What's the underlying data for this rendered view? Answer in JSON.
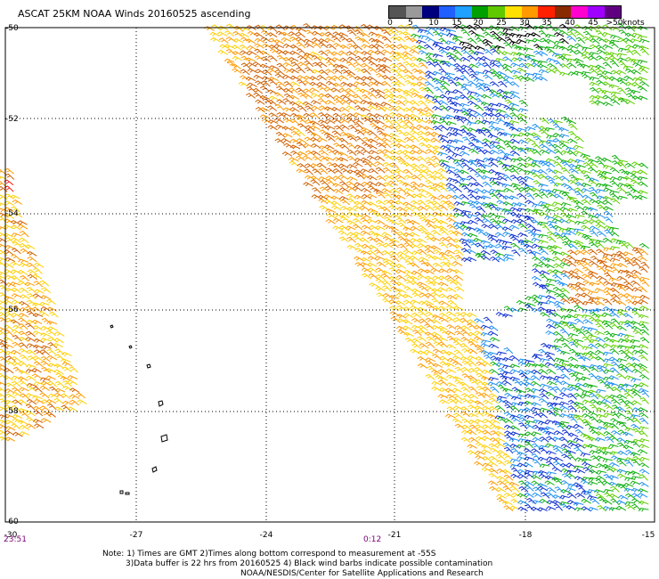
{
  "title": "ASCAT 25KM NOAA Winds 20160525 ascending",
  "legend": {
    "ticks": [
      "0",
      "5",
      "10",
      "15",
      "20",
      "25",
      "30",
      "35",
      "40",
      "45",
      ">50"
    ],
    "unit": "knots",
    "colors": [
      "#555555",
      "#9a9a9a",
      "#00007f",
      "#2060ff",
      "#20a0ff",
      "#00a000",
      "#60c800",
      "#ffe000",
      "#ff9a00",
      "#ff2000",
      "#8a2a00",
      "#ff00d0",
      "#a000ff",
      "#600080"
    ]
  },
  "axes": {
    "lat_labels": [
      "-50",
      "-52",
      "-54",
      "-56",
      "-58",
      "-60"
    ],
    "lon_labels": [
      "-30",
      "-27",
      "-24",
      "-21",
      "-18",
      "-15"
    ]
  },
  "times": {
    "left": "23:51",
    "center": "0:12"
  },
  "notes": [
    "Note: 1) Times are GMT 2)Times along bottom correspond to measurement at -55S",
    "3)Data buffer is 22 hrs from 20160525 4) Black wind barbs indicate possible contamination",
    "NOAA/NESDIS/Center for Satellite Applications and Research"
  ],
  "wind_colors": {
    "yellow": "#ffd000",
    "orange": "#ff9a00",
    "dark_orange": "#d06000",
    "red": "#ff2020",
    "green": "#10b010",
    "light_green": "#60d000",
    "blue": "#1030d0",
    "light_blue": "#2090f0",
    "black": "#000000"
  }
}
